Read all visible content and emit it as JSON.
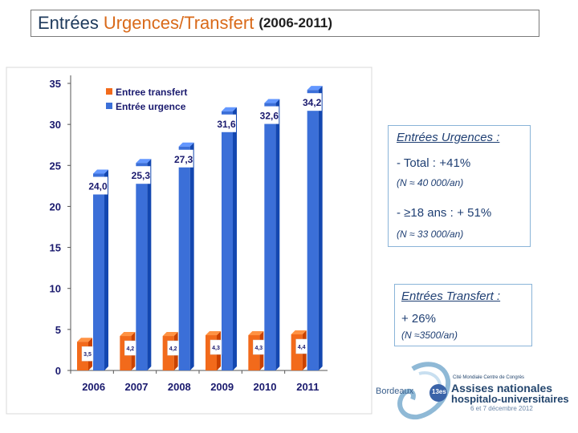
{
  "title": {
    "part1": "Entrées",
    "part2": "Urgences/Transfert",
    "part3": "(2006-2011)"
  },
  "unit_label": "%",
  "chart_data": {
    "type": "bar",
    "categories": [
      "2006",
      "2007",
      "2008",
      "2009",
      "2010",
      "2011"
    ],
    "series": [
      {
        "name": "Entree transfert",
        "color": "#f26a1b",
        "values": [
          3.5,
          4.2,
          4.2,
          4.3,
          4.3,
          4.4
        ],
        "labels": [
          "3,5",
          "4,2",
          "4,2",
          "4,3",
          "4,3",
          "4,4"
        ]
      },
      {
        "name": "Entrée urgence",
        "color": "#3b6fd8",
        "values": [
          24.0,
          25.3,
          27.3,
          31.6,
          32.6,
          34.2
        ],
        "labels": [
          "24,0",
          "25,3",
          "27,3",
          "31,6",
          "32,6",
          "34,2"
        ]
      }
    ],
    "y_ticks": [
      "0",
      "5",
      "10",
      "15",
      "20",
      "25",
      "30",
      "35"
    ],
    "ylim": [
      0,
      35
    ],
    "legend": "top-left"
  },
  "panel_urgences": {
    "header": "Entrées Urgences :",
    "total_label": "- Total :",
    "total_value": "+41%",
    "total_note": "(N ≈ 40 000/an)",
    "adult_label": "- ≥18 ans :",
    "adult_value": "+ 51%",
    "adult_note": "(N ≈ 33 000/an)"
  },
  "panel_transfert": {
    "header": "Entrées Transfert :",
    "value": "+ 26%",
    "note": "(N ≈3500/an)"
  },
  "logo": {
    "city": "Bordeaux",
    "badge": "13es",
    "line1": "Cité Mondiale Centre de Congrès",
    "line2": "Assises nationales",
    "line3": "hospitalo-universitaires",
    "line4": "6 et 7 décembre 2012"
  }
}
